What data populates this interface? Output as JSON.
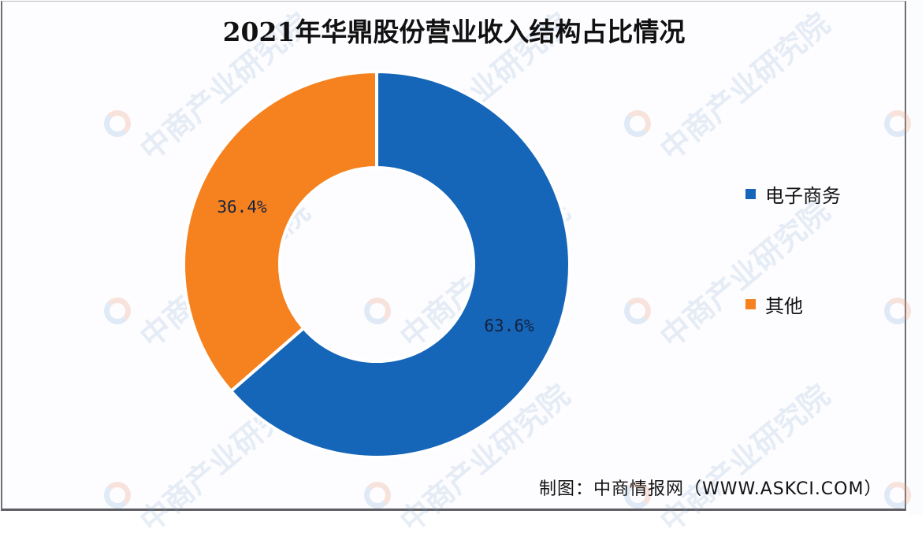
{
  "title": "2021年华鼎股份营业收入结构占比情况",
  "legend": {
    "items": [
      {
        "label": "电子商务",
        "color": "#1565b8"
      },
      {
        "label": "其他",
        "color": "#f5821f"
      }
    ]
  },
  "labels": {
    "ecommerce": "63.6%",
    "other": "36.4%"
  },
  "source": "制图：中商情报网（WWW.ASKCI.COM）",
  "watermark": "中商产业研究院",
  "chart_data": {
    "type": "pie",
    "subtype": "donut",
    "title": "2021年华鼎股份营业收入结构占比情况",
    "categories": [
      "电子商务",
      "其他"
    ],
    "values": [
      63.6,
      36.4
    ],
    "unit": "%",
    "colors": [
      "#1565b8",
      "#f5821f"
    ],
    "legend_position": "right",
    "start_angle": "12 o'clock, clockwise",
    "source": "制图：中商情报网（WWW.ASKCI.COM）"
  }
}
